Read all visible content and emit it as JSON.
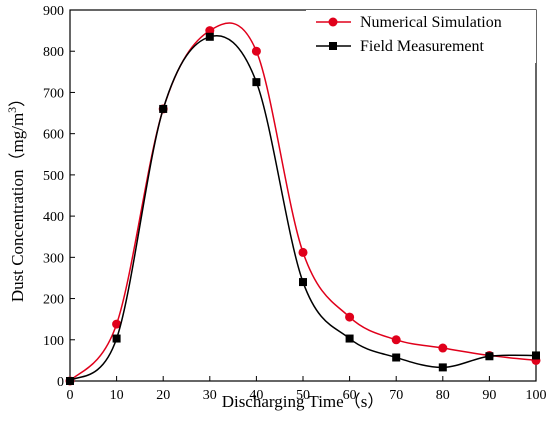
{
  "chart_data": {
    "type": "line",
    "title": "",
    "xlabel": "Discharging Time（s）",
    "ylabel_main": "Dust Concentration（mg/m",
    "ylabel_sup": "3",
    "ylabel_end": "）",
    "xlim": [
      0,
      100
    ],
    "ylim": [
      0,
      900
    ],
    "x_ticks": [
      0,
      10,
      20,
      30,
      40,
      50,
      60,
      70,
      80,
      90,
      100
    ],
    "y_ticks": [
      0,
      100,
      200,
      300,
      400,
      500,
      600,
      700,
      800,
      900
    ],
    "legend_position": "top-right",
    "grid": false,
    "x": [
      0,
      10,
      20,
      30,
      40,
      50,
      60,
      70,
      80,
      90,
      100
    ],
    "series": [
      {
        "name": "Numerical Simulation",
        "color": "#e0001b",
        "marker": "circle",
        "values": [
          0,
          138,
          660,
          850,
          800,
          312,
          155,
          100,
          80,
          62,
          50
        ]
      },
      {
        "name": "Field Measurement",
        "color": "#000000",
        "marker": "square",
        "values": [
          0,
          103,
          660,
          835,
          725,
          240,
          103,
          57,
          33,
          60,
          62
        ]
      }
    ]
  }
}
